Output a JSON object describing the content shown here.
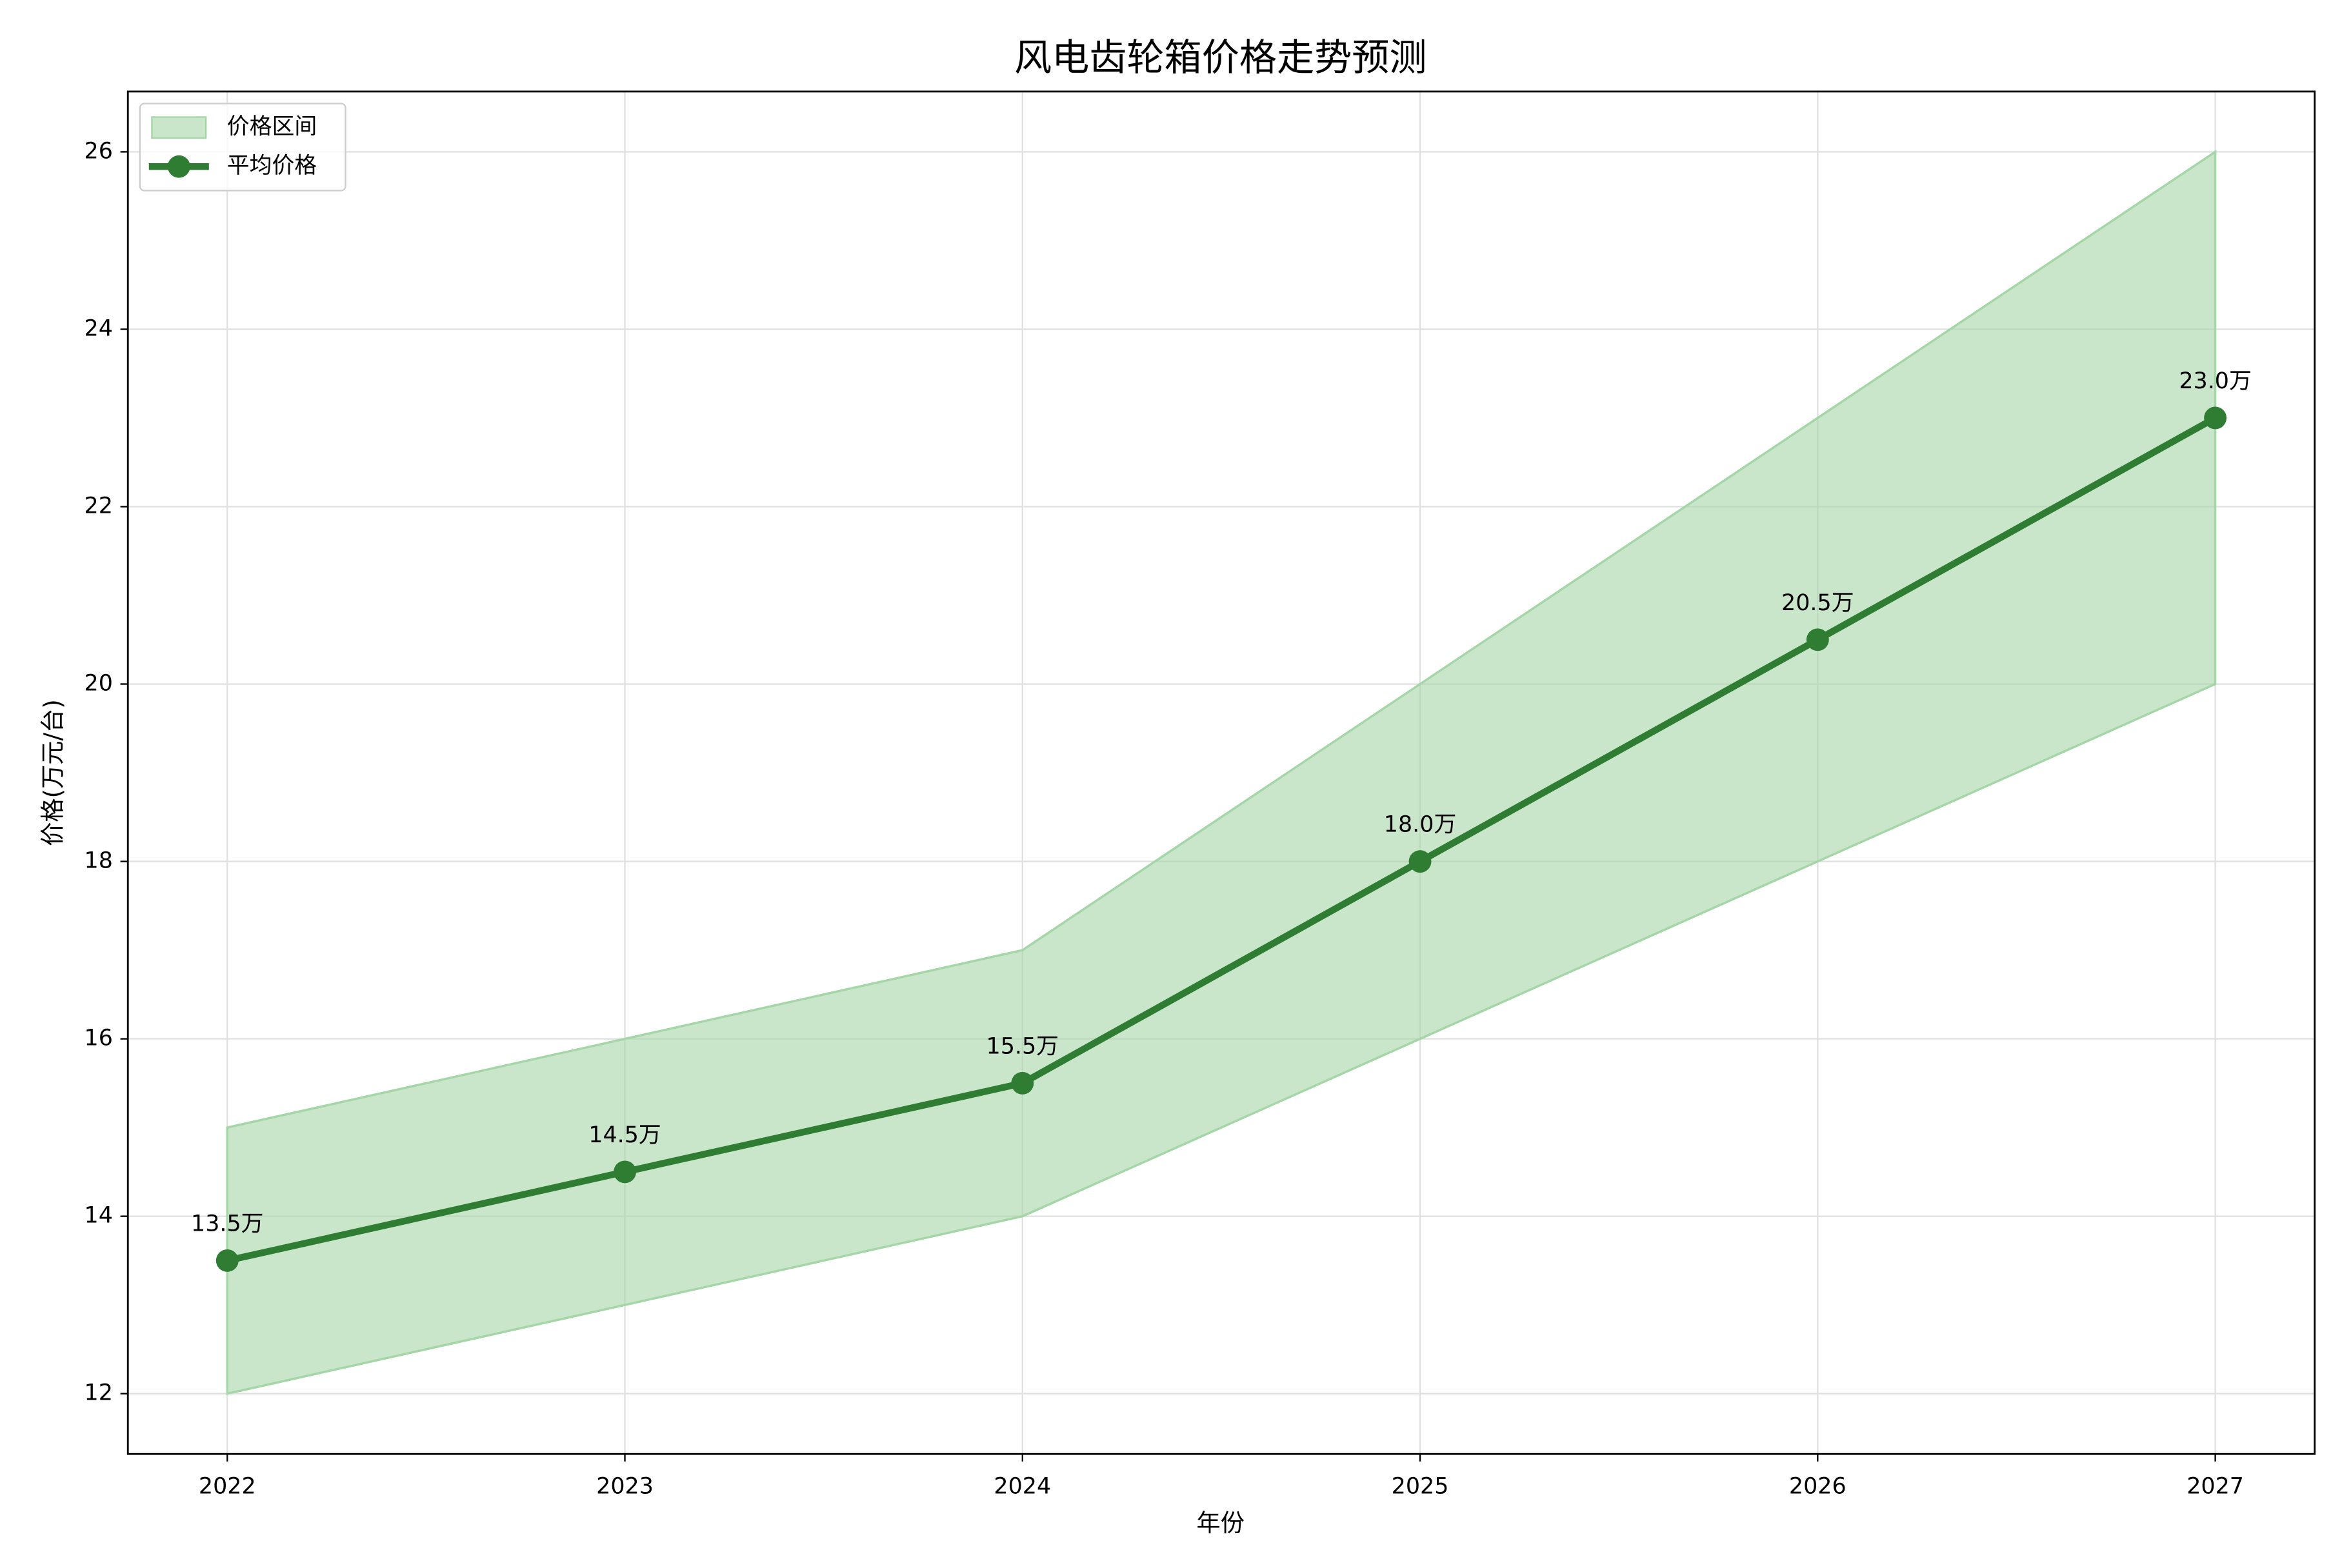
{
  "chart_data": {
    "type": "line",
    "title": "风电齿轮箱价格走势预测",
    "x_label": "年份",
    "y_label": "价格(万元/台)",
    "x": [
      2022,
      2023,
      2024,
      2025,
      2026,
      2027
    ],
    "series": [
      {
        "name": "价格区间",
        "type": "band",
        "color": "#a5d6a7",
        "low": [
          12,
          13,
          14,
          16,
          18,
          20
        ],
        "high": [
          15,
          16,
          17,
          20,
          23,
          26
        ]
      },
      {
        "name": "平均价格",
        "type": "line",
        "color": "#2e7d32",
        "values": [
          13.5,
          14.5,
          15.5,
          18,
          20.5,
          23
        ],
        "value_labels": [
          "13.5万",
          "14.5万",
          "15.5万",
          "18.0万",
          "20.5万",
          "23.0万"
        ]
      }
    ],
    "xlim": [
      2021.75,
      2027.25
    ],
    "xticks": [
      2022,
      2023,
      2024,
      2025,
      2026,
      2027
    ],
    "ylim": [
      11.32,
      26.68
    ],
    "yticks": [
      12,
      14,
      16,
      18,
      20,
      22,
      24,
      26
    ],
    "grid": true,
    "legend": "upper left"
  }
}
